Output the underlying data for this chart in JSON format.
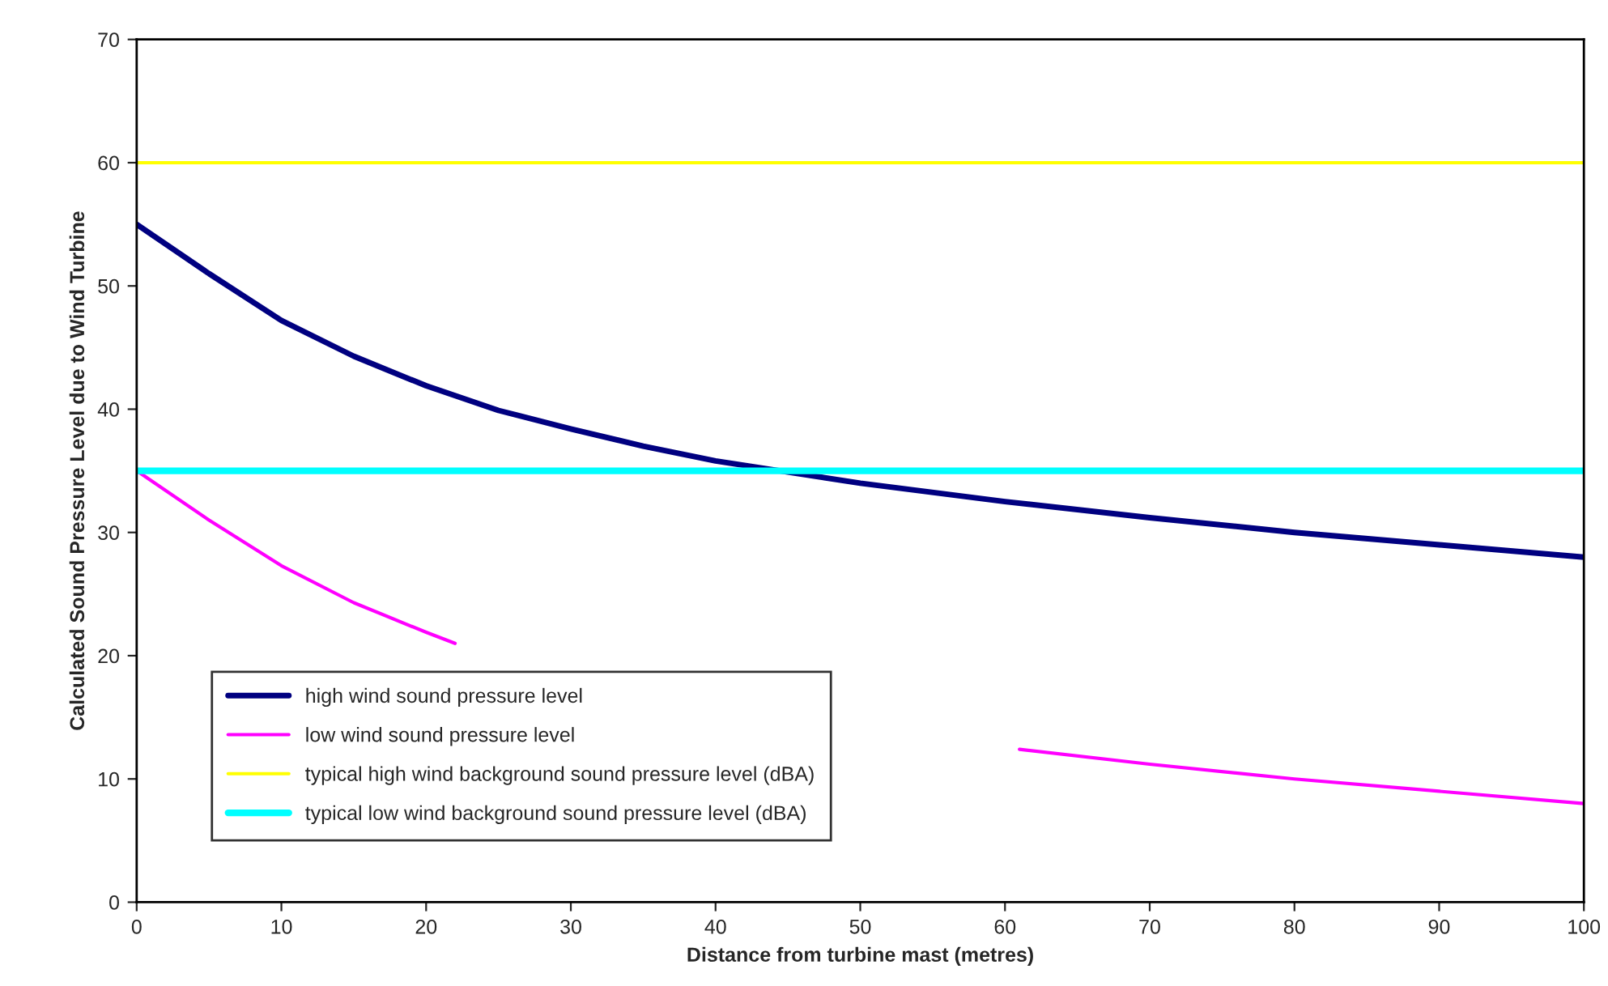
{
  "chart_data": {
    "type": "line",
    "xlabel": "Distance from turbine mast (metres)",
    "ylabel": "Calculated Sound Pressure Level due to Wind Turbine",
    "xlim": [
      0,
      100
    ],
    "xticks": [
      0,
      10,
      20,
      30,
      40,
      50,
      60,
      70,
      80,
      90,
      100
    ],
    "ylim": [
      0,
      70
    ],
    "yticks": [
      0,
      10,
      20,
      30,
      40,
      50,
      60,
      70
    ],
    "grid": false,
    "legend": "bottom left",
    "marker": "none",
    "line_style": "solid",
    "series": [
      {
        "name": "high wind sound pressure level",
        "color": "#000080",
        "x": [
          0,
          5,
          10,
          15,
          20,
          25,
          30,
          35,
          40,
          45,
          50,
          60,
          70,
          80,
          90,
          100
        ],
        "values": [
          55,
          51,
          47.2,
          44.3,
          41.9,
          39.9,
          38.4,
          37.0,
          35.8,
          34.9,
          34.0,
          32.5,
          31.2,
          30.0,
          29.0,
          28.0
        ]
      },
      {
        "name": "low wind sound pressure level",
        "color": "#ff00ff",
        "x": [
          0,
          5,
          10,
          15,
          20,
          22,
          30,
          40,
          50,
          61,
          70,
          80,
          90,
          100
        ],
        "values": [
          35,
          31,
          27.3,
          24.3,
          21.9,
          21.0,
          null,
          null,
          null,
          12.4,
          11.2,
          10.0,
          9.0,
          8.0
        ]
      },
      {
        "name": "typical high wind background sound pressure level (dBA)",
        "color": "#ffff00",
        "x": [
          0,
          100
        ],
        "values": [
          60,
          60
        ]
      },
      {
        "name": "typical low wind background sound pressure level (dBA)",
        "color": "#00ffff",
        "x": [
          0,
          100
        ],
        "values": [
          35,
          35
        ]
      }
    ]
  }
}
